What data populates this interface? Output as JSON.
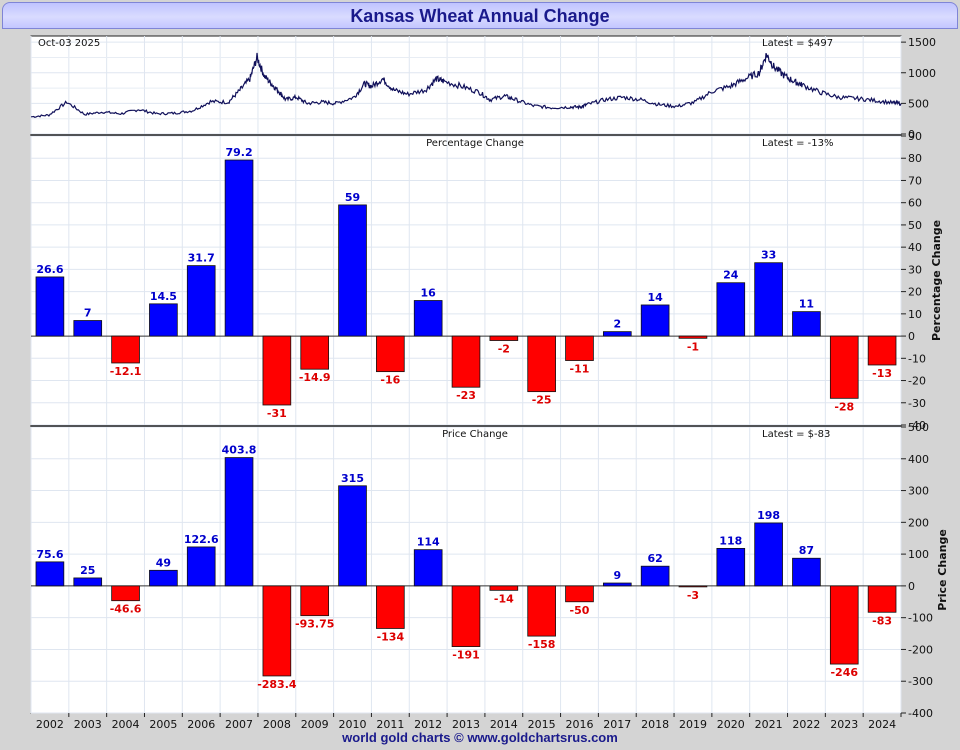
{
  "title": "Kansas Wheat Annual Change",
  "footer": "world gold charts © www.goldchartsrus.com",
  "colors": {
    "positive": "#0000ff",
    "negative": "#ff0000",
    "line": "#10105a",
    "label_pos": "#0000cc",
    "label_neg": "#dd0000"
  },
  "chart_data": [
    {
      "type": "line",
      "name": "price",
      "date_label": "Oct-03  2025",
      "latest_label": "Latest = $497",
      "ylim": [
        0,
        1600
      ],
      "yticks": [
        "0",
        "500",
        "1000",
        "1500"
      ],
      "xlim": [
        2001.5,
        2025.75
      ],
      "x": [
        2001.5,
        2002.0,
        2002.5,
        2003.0,
        2003.5,
        2004.0,
        2004.5,
        2005.0,
        2005.5,
        2006.0,
        2006.5,
        2007.0,
        2007.3,
        2007.6,
        2007.8,
        2008.0,
        2008.2,
        2008.4,
        2008.6,
        2008.9,
        2009.2,
        2009.6,
        2010.0,
        2010.5,
        2010.8,
        2011.0,
        2011.3,
        2011.6,
        2012.0,
        2012.5,
        2012.8,
        2013.0,
        2013.5,
        2014.0,
        2014.3,
        2014.7,
        2015.0,
        2015.5,
        2016.0,
        2016.5,
        2016.8,
        2017.0,
        2017.5,
        2018.0,
        2018.5,
        2019.0,
        2019.5,
        2020.0,
        2020.5,
        2021.0,
        2021.4,
        2021.8,
        2022.0,
        2022.2,
        2022.5,
        2022.8,
        2023.0,
        2023.5,
        2024.0,
        2024.5,
        2025.0,
        2025.5,
        2025.75
      ],
      "y": [
        280,
        310,
        520,
        320,
        360,
        330,
        400,
        330,
        340,
        380,
        530,
        520,
        700,
        900,
        1250,
        950,
        820,
        700,
        560,
        600,
        500,
        520,
        500,
        600,
        820,
        780,
        900,
        720,
        650,
        720,
        900,
        860,
        780,
        680,
        560,
        620,
        560,
        460,
        430,
        440,
        440,
        480,
        560,
        600,
        560,
        480,
        450,
        520,
        700,
        780,
        900,
        1000,
        1300,
        1100,
        950,
        850,
        800,
        680,
        600,
        580,
        550,
        510,
        497
      ]
    },
    {
      "type": "bar",
      "name": "percentage-change",
      "subtitle": "Percentage Change",
      "latest_label": "Latest = -13%",
      "ylabel": "Percentage Change",
      "ylim": [
        -40,
        90
      ],
      "yticks": [
        "-40",
        "-30",
        "-20",
        "-10",
        "0",
        "10",
        "20",
        "30",
        "40",
        "50",
        "60",
        "70",
        "80",
        "90"
      ],
      "categories": [
        "2002",
        "2003",
        "2004",
        "2005",
        "2006",
        "2007",
        "2008",
        "2009",
        "2010",
        "2011",
        "2012",
        "2013",
        "2014",
        "2015",
        "2016",
        "2017",
        "2018",
        "2019",
        "2020",
        "2021",
        "2022",
        "2023",
        "2024"
      ],
      "values": [
        26.6,
        7,
        -12.1,
        14.5,
        31.7,
        79.2,
        -31,
        -14.9,
        59,
        -16,
        16,
        -23,
        -2,
        -25,
        -11,
        2,
        14,
        -1,
        24,
        33,
        11,
        -28,
        -13
      ],
      "labels": [
        "26.6",
        "7",
        "-12.1",
        "14.5",
        "31.7",
        "79.2",
        "-31",
        "-14.9",
        "59",
        "-16",
        "16",
        "-23",
        "-2",
        "-25",
        "-11",
        "2",
        "14",
        "-1",
        "24",
        "33",
        "11",
        "-28",
        "-13"
      ]
    },
    {
      "type": "bar",
      "name": "price-change",
      "subtitle": "Price Change",
      "latest_label": "Latest = $-83",
      "ylabel": "Price Change",
      "ylim": [
        -400,
        500
      ],
      "yticks": [
        "-400",
        "-300",
        "-200",
        "-100",
        "0",
        "100",
        "200",
        "300",
        "400",
        "500"
      ],
      "categories": [
        "2002",
        "2003",
        "2004",
        "2005",
        "2006",
        "2007",
        "2008",
        "2009",
        "2010",
        "2011",
        "2012",
        "2013",
        "2014",
        "2015",
        "2016",
        "2017",
        "2018",
        "2019",
        "2020",
        "2021",
        "2022",
        "2023",
        "2024"
      ],
      "values": [
        75.6,
        25,
        -46.6,
        49,
        122.6,
        403.8,
        -283.4,
        -93.75,
        315,
        -134,
        114,
        -191,
        -14,
        -158,
        -50,
        9,
        62,
        -3,
        118,
        198,
        87,
        -246,
        -83
      ],
      "labels": [
        "75.6",
        "25",
        "-46.6",
        "49",
        "122.6",
        "403.8",
        "-283.4",
        "-93.75",
        "315",
        "-134",
        "114",
        "-191",
        "-14",
        "-158",
        "-50",
        "9",
        "62",
        "-3",
        "118",
        "198",
        "87",
        "-246",
        "-83"
      ]
    }
  ]
}
